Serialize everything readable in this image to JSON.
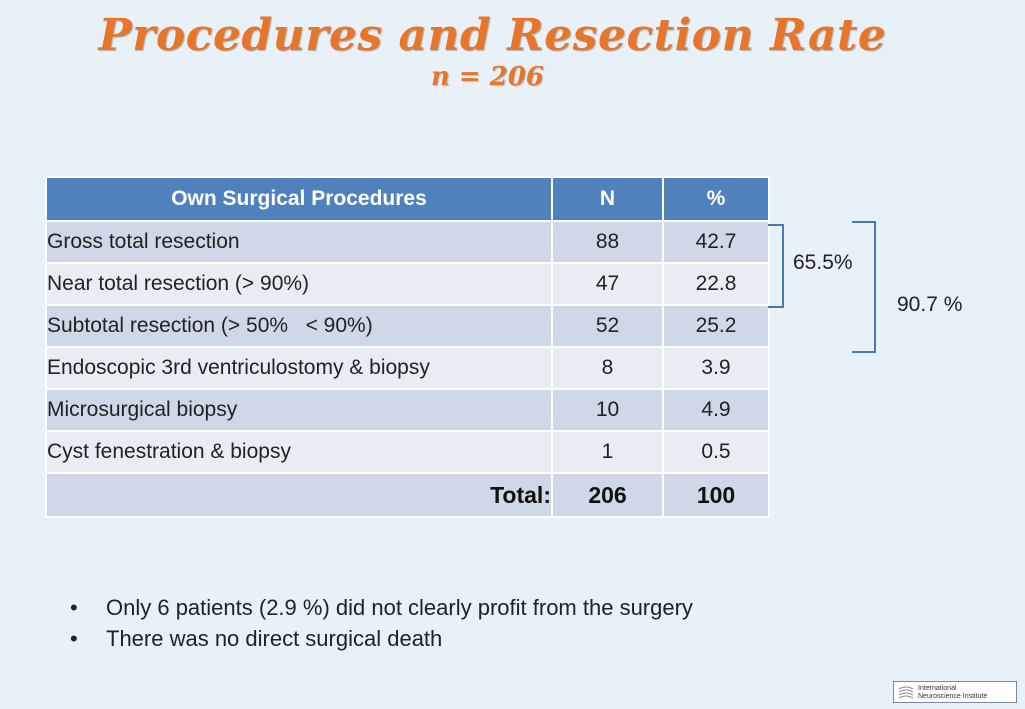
{
  "slide": {
    "title": "Procedures and Resection Rate",
    "subtitle": "n = 206"
  },
  "table": {
    "headers": [
      "Own Surgical Procedures",
      "N",
      "%"
    ],
    "rows": [
      {
        "procedure": "Gross total resection",
        "n": "88",
        "pct": "42.7"
      },
      {
        "procedure": "Near total resection (> 90%)",
        "n": "47",
        "pct": "22.8"
      },
      {
        "procedure": "Subtotal resection (> 50%   < 90%)",
        "n": "52",
        "pct": "25.2"
      },
      {
        "procedure": "Endoscopic 3rd ventriculostomy & biopsy",
        "n": "8",
        "pct": "3.9"
      },
      {
        "procedure": "Microsurgical biopsy",
        "n": "10",
        "pct": "4.9"
      },
      {
        "procedure": "Cyst fenestration & biopsy",
        "n": "1",
        "pct": "0.5"
      }
    ],
    "total": {
      "label": "Total:",
      "n": "206",
      "pct": "100"
    }
  },
  "brackets": {
    "first_two": "65.5%",
    "first_three": "90.7 %"
  },
  "notes": [
    "Only 6 patients (2.9 %) did not clearly profit from the surgery",
    "There was no direct surgical death"
  ],
  "bullet_char": "•",
  "logo": {
    "line1": "International",
    "line2": "Neuroscience Institute"
  },
  "colors": {
    "title": "#e8762a",
    "header_bg": "#4f81bd",
    "row_dark": "#cfd8e6",
    "row_light": "#e8edf4",
    "bracket": "#4a78b4",
    "background": "#e8f0f8"
  }
}
